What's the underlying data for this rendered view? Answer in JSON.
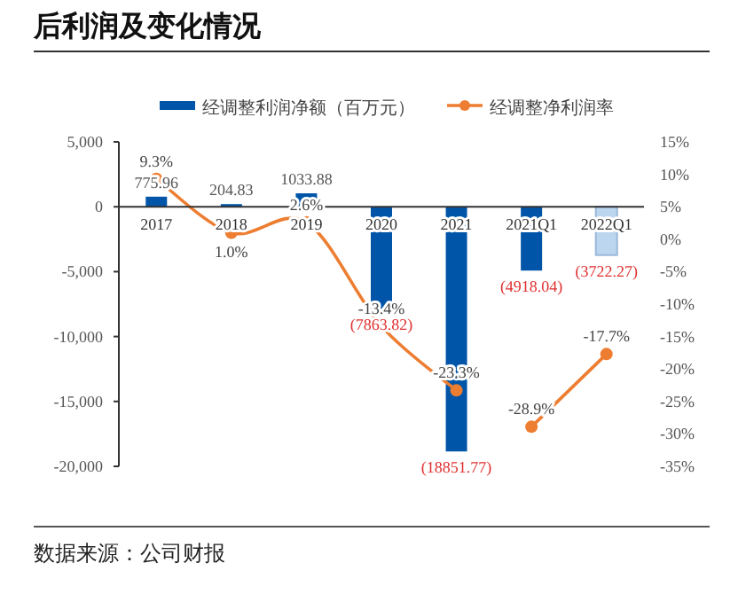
{
  "chart_data": {
    "type": "bar",
    "title": "后利润及变化情况",
    "categories": [
      "2017",
      "2018",
      "2019",
      "2020",
      "2021",
      "2021Q1",
      "2022Q1"
    ],
    "series": [
      {
        "name": "经调整利润净额（百万元）",
        "color": "#0055a8",
        "colors": [
          "#0055a8",
          "#0055a8",
          "#0055a8",
          "#0055a8",
          "#0055a8",
          "#0055a8",
          "#bcd6ef"
        ],
        "values": [
          775.96,
          204.83,
          1033.88,
          -7863.82,
          -18851.77,
          -4918.04,
          -3722.27
        ],
        "value_labels": [
          "775.96",
          "204.83",
          "1033.88",
          "(7863.82)",
          "(18851.77)",
          "(4918.04)",
          "(3722.27)"
        ]
      },
      {
        "type": "line",
        "axis": "y2",
        "name": "经调整净利润率",
        "color": "#ed7d31",
        "marker": "circle",
        "values": [
          9.3,
          1.0,
          2.6,
          -13.4,
          -23.3,
          null,
          null
        ],
        "value_labels": [
          "9.3%",
          "1.0%",
          "2.6%",
          "-13.4%",
          "-23.3%",
          null,
          null
        ]
      },
      {
        "type": "line",
        "axis": "y2",
        "color": "#ed7d31",
        "marker": "circle",
        "values": [
          null,
          null,
          null,
          null,
          null,
          -28.9,
          -17.7
        ],
        "value_labels": [
          null,
          null,
          null,
          null,
          null,
          "-28.9%",
          "-17.7%"
        ]
      }
    ],
    "ylim": [
      -20000,
      5000
    ],
    "yticks": [
      {
        "value": -20000,
        "label": "-20,000"
      },
      {
        "value": -15000,
        "label": "-15,000"
      },
      {
        "value": -10000,
        "label": "-10,000"
      },
      {
        "value": -5000,
        "label": "-5,000"
      },
      0,
      {
        "value": 5000,
        "label": "5,000"
      }
    ],
    "y2lim": [
      -35,
      15
    ],
    "y2ticks": [
      {
        "value": -35,
        "label": "-35%"
      },
      {
        "value": -30,
        "label": "-30%"
      },
      {
        "value": -25,
        "label": "-25%"
      },
      {
        "value": -20,
        "label": "-20%"
      },
      {
        "value": -15,
        "label": "-15%"
      },
      {
        "value": -10,
        "label": "-10%"
      },
      {
        "value": -5,
        "label": "-5%"
      },
      {
        "value": 0,
        "label": "0%"
      },
      {
        "value": 5,
        "label": "5%"
      },
      {
        "value": 10,
        "label": "10%"
      },
      {
        "value": 15,
        "label": "15%"
      }
    ],
    "legend": "top",
    "annotations": [
      "数据来源：公司财报"
    ]
  }
}
